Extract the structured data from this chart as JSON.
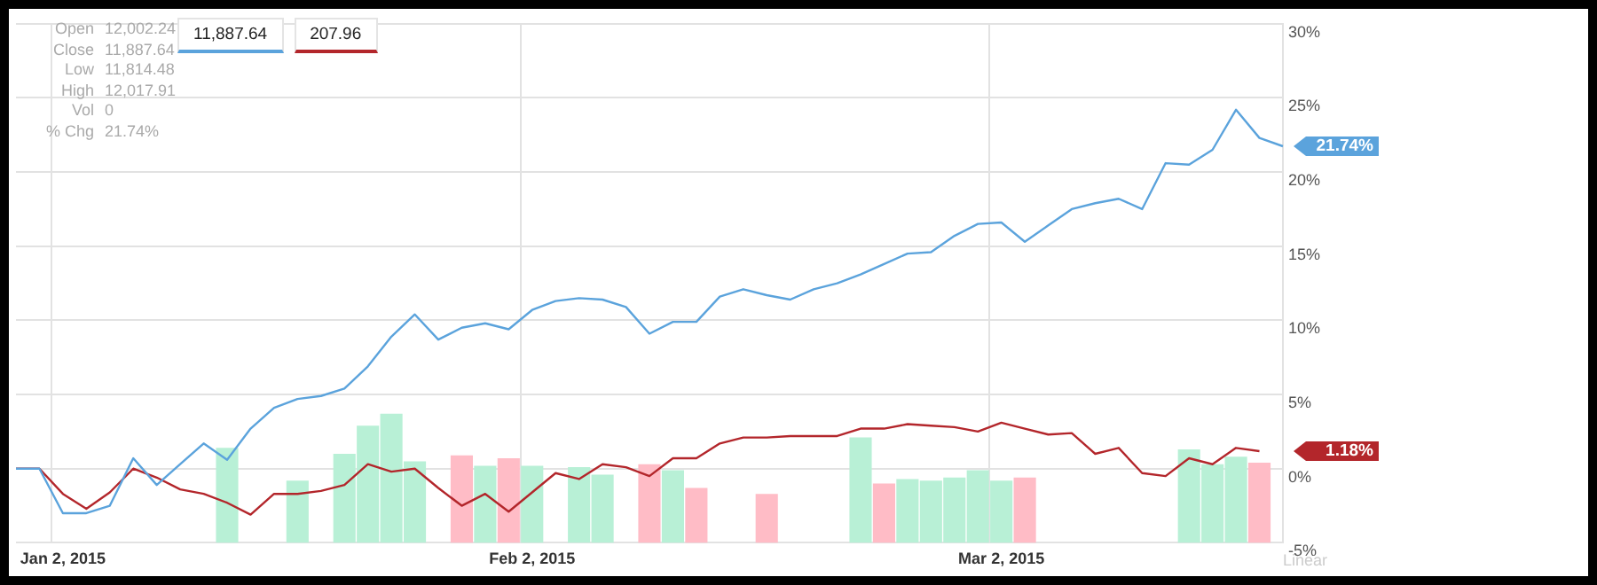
{
  "chart_data": {
    "type": "line",
    "marker": "none",
    "grid": true,
    "ylim": [
      -5,
      30
    ],
    "yticks": [
      {
        "value": -5,
        "label": "-5%"
      },
      {
        "value": 0,
        "label": "0%"
      },
      {
        "value": 5,
        "label": "5%"
      },
      {
        "value": 10,
        "label": "10%"
      },
      {
        "value": 15,
        "label": "15%"
      },
      {
        "value": 20,
        "label": "20%"
      },
      {
        "value": 25,
        "label": "25%"
      },
      {
        "value": 30,
        "label": "30%"
      }
    ],
    "categories": [
      null,
      null,
      "Jan 2, 2015",
      null,
      null,
      null,
      null,
      null,
      null,
      null,
      null,
      null,
      null,
      null,
      null,
      null,
      null,
      null,
      null,
      null,
      null,
      null,
      "Feb 2, 2015",
      null,
      null,
      null,
      null,
      null,
      null,
      null,
      null,
      null,
      null,
      null,
      null,
      null,
      null,
      null,
      null,
      null,
      null,
      null,
      "Mar 2, 2015",
      null,
      null,
      null,
      null,
      null,
      null,
      null,
      null,
      null,
      null,
      null,
      null
    ],
    "series": [
      {
        "color": "#5ba3dc",
        "values": [
          0,
          0,
          -3,
          -3,
          -2.5,
          0.7,
          -1.1,
          0.3,
          1.7,
          0.6,
          2.7,
          4.1,
          4.7,
          4.9,
          5.4,
          6.9,
          8.9,
          10.4,
          8.7,
          9.5,
          9.8,
          9.4,
          10.7,
          11.3,
          11.5,
          11.4,
          10.9,
          9.1,
          9.9,
          9.9,
          11.6,
          12.1,
          11.7,
          11.4,
          12.1,
          12.5,
          13.1,
          13.8,
          14.5,
          14.6,
          15.7,
          16.5,
          16.6,
          15.3,
          16.4,
          17.5,
          17.9,
          18.2,
          17.5,
          20.6,
          20.5,
          21.5,
          24.2,
          22.3,
          21.74
        ]
      },
      {
        "color": "#b3262b",
        "values": [
          0,
          0,
          -1.7,
          -2.7,
          -1.6,
          0,
          -0.6,
          -1.4,
          -1.7,
          -2.3,
          -3.1,
          -1.7,
          -1.7,
          -1.5,
          -1.1,
          0.3,
          -0.2,
          0,
          -1.3,
          -2.5,
          -1.7,
          -2.9,
          -1.6,
          -0.3,
          -0.7,
          0.3,
          0.1,
          -0.5,
          0.7,
          0.7,
          1.7,
          2.1,
          2.1,
          2.2,
          2.2,
          2.2,
          2.7,
          2.7,
          3.0,
          2.9,
          2.8,
          2.5,
          3.1,
          2.7,
          2.3,
          2.4,
          1.0,
          1.4,
          -0.3,
          -0.5,
          0.7,
          0.3,
          1.4,
          1.18,
          null
        ]
      },
      {
        "type": "bar",
        "values": [
          null,
          null,
          null,
          null,
          null,
          null,
          null,
          null,
          null,
          6.4,
          null,
          null,
          4.2,
          null,
          6.0,
          7.9,
          8.7,
          5.5,
          null,
          5.9,
          5.2,
          5.7,
          5.2,
          null,
          5.1,
          4.6,
          null,
          5.3,
          4.9,
          3.7,
          null,
          null,
          3.3,
          null,
          null,
          null,
          7.1,
          4.0,
          4.3,
          4.2,
          4.4,
          4.9,
          4.2,
          4.4,
          null,
          null,
          null,
          null,
          null,
          null,
          6.3,
          5.3,
          5.8,
          5.4,
          null
        ],
        "base": [
          null,
          null,
          null,
          null,
          null,
          null,
          null,
          null,
          null,
          -5,
          null,
          null,
          -5,
          null,
          -5,
          -5,
          -5,
          -5,
          null,
          -5,
          -5,
          -5,
          -5,
          null,
          -5,
          -5,
          null,
          -5,
          -5,
          -5,
          null,
          null,
          -5,
          null,
          null,
          null,
          -5,
          -5,
          -5,
          -5,
          -5,
          -5,
          -5,
          -5,
          null,
          null,
          null,
          null,
          null,
          null,
          -5,
          -5,
          -5,
          -5,
          null
        ],
        "colors": [
          null,
          null,
          null,
          null,
          null,
          null,
          null,
          null,
          null,
          "#b8f0d6",
          null,
          null,
          "#b8f0d6",
          null,
          "#b8f0d6",
          "#b8f0d6",
          "#b8f0d6",
          "#b8f0d6",
          null,
          "#ffbcc6",
          "#b8f0d6",
          "#ffbcc6",
          "#b8f0d6",
          null,
          "#b8f0d6",
          "#b8f0d6",
          null,
          "#ffbcc6",
          "#b8f0d6",
          "#ffbcc6",
          null,
          null,
          "#ffbcc6",
          null,
          null,
          null,
          "#b8f0d6",
          "#ffbcc6",
          "#b8f0d6",
          "#b8f0d6",
          "#b8f0d6",
          "#b8f0d6",
          "#b8f0d6",
          "#ffbcc6",
          null,
          null,
          null,
          null,
          null,
          null,
          "#b8f0d6",
          "#b8f0d6",
          "#b8f0d6",
          "#ffbcc6",
          null
        ]
      }
    ],
    "annotations": [
      "Open 12,002.24",
      "Close 11,887.64",
      "Low 11,814.48",
      "High 12,017.91",
      "Vol 0",
      "% Chg 21.74%",
      "11,887.64",
      "207.96",
      "Linear",
      "21.74%",
      "1.18%"
    ]
  }
}
